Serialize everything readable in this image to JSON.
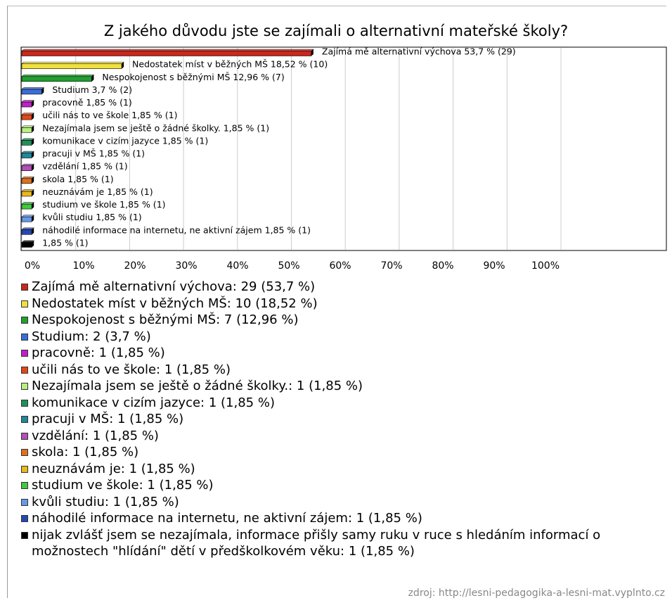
{
  "chart_data": {
    "type": "bar",
    "orientation": "horizontal",
    "title": "Z jakého důvodu jste se zajímali o alternativní mateřské školy?",
    "values": [
      53.7,
      18.52,
      12.96,
      3.7,
      1.85,
      1.85,
      1.85,
      1.85,
      1.85,
      1.85,
      1.85,
      1.85,
      1.85,
      1.85,
      1.85,
      1.85
    ],
    "value_labels": [
      "Zajímá mě alternativní výchova 53,7 % (29)",
      "Nedostatek míst v běžných MŠ 18,52 % (10)",
      "Nespokojenost s běžnými MŠ 12,96 % (7)",
      "Studium 3,7 % (2)",
      "pracovně 1,85 % (1)",
      "učili nás to ve škole 1,85 % (1)",
      "Nezajímala jsem se ještě o žádné školky. 1,85 % (1)",
      "komunikace v cizím jazyce 1,85 % (1)",
      "pracuji v MŠ 1,85 % (1)",
      "vzdělání 1,85 % (1)",
      "skola 1,85 % (1)",
      "neuznávám je 1,85 % (1)",
      "studium ve škole 1,85 % (1)",
      "kvůli studiu 1,85 % (1)",
      "náhodilé informace na internetu, ne aktivní zájem 1,85 % (1)",
      "1,85 % (1)"
    ],
    "legend_labels": [
      "Zajímá mě alternativní výchova: 29 (53,7 %)",
      "Nedostatek míst v běžných MŠ: 10 (18,52 %)",
      "Nespokojenost s běžnými MŠ: 7 (12,96 %)",
      "Studium: 2 (3,7 %)",
      "pracovně: 1 (1,85 %)",
      "učili nás to ve škole: 1 (1,85 %)",
      "Nezajímala jsem se ještě o žádné školky.: 1 (1,85 %)",
      "komunikace v cizím jazyce: 1 (1,85 %)",
      "pracuji v MŠ: 1 (1,85 %)",
      "vzdělání: 1 (1,85 %)",
      "skola: 1 (1,85 %)",
      "neuznávám je: 1 (1,85 %)",
      "studium ve škole: 1 (1,85 %)",
      "kvůli studiu: 1 (1,85 %)",
      "náhodilé informace na internetu, ne aktivní zájem: 1 (1,85 %)",
      "nijak zvlášť jsem se nezajímala, informace přišly samy ruku v ruce s hledáním informací o možnostech \"hlídání\" dětí v předškolkovém věku: 1 (1,85 %)"
    ],
    "colors": [
      "#c8281c",
      "#f0e040",
      "#20a030",
      "#3c6cd8",
      "#c020c8",
      "#e04818",
      "#b8f080",
      "#209058",
      "#208898",
      "#b050b8",
      "#e07020",
      "#e8b820",
      "#40c840",
      "#6898e8",
      "#2848b0",
      "#000000"
    ],
    "xlim": [
      0,
      100
    ],
    "xticks": [
      {
        "value": 0,
        "label": "0%"
      },
      {
        "value": 10,
        "label": "10%"
      },
      {
        "value": 20,
        "label": "20%"
      },
      {
        "value": 30,
        "label": "30%"
      },
      {
        "value": 40,
        "label": "40%"
      },
      {
        "value": 50,
        "label": "50%"
      },
      {
        "value": 60,
        "label": "60%"
      },
      {
        "value": 70,
        "label": "70%"
      },
      {
        "value": 80,
        "label": "80%"
      },
      {
        "value": 90,
        "label": "90%"
      },
      {
        "value": 100,
        "label": "100%"
      }
    ],
    "grid": true,
    "source": "zdroj: http://lesni-pedagogika-a-lesni-mat.vyplnto.cz"
  }
}
